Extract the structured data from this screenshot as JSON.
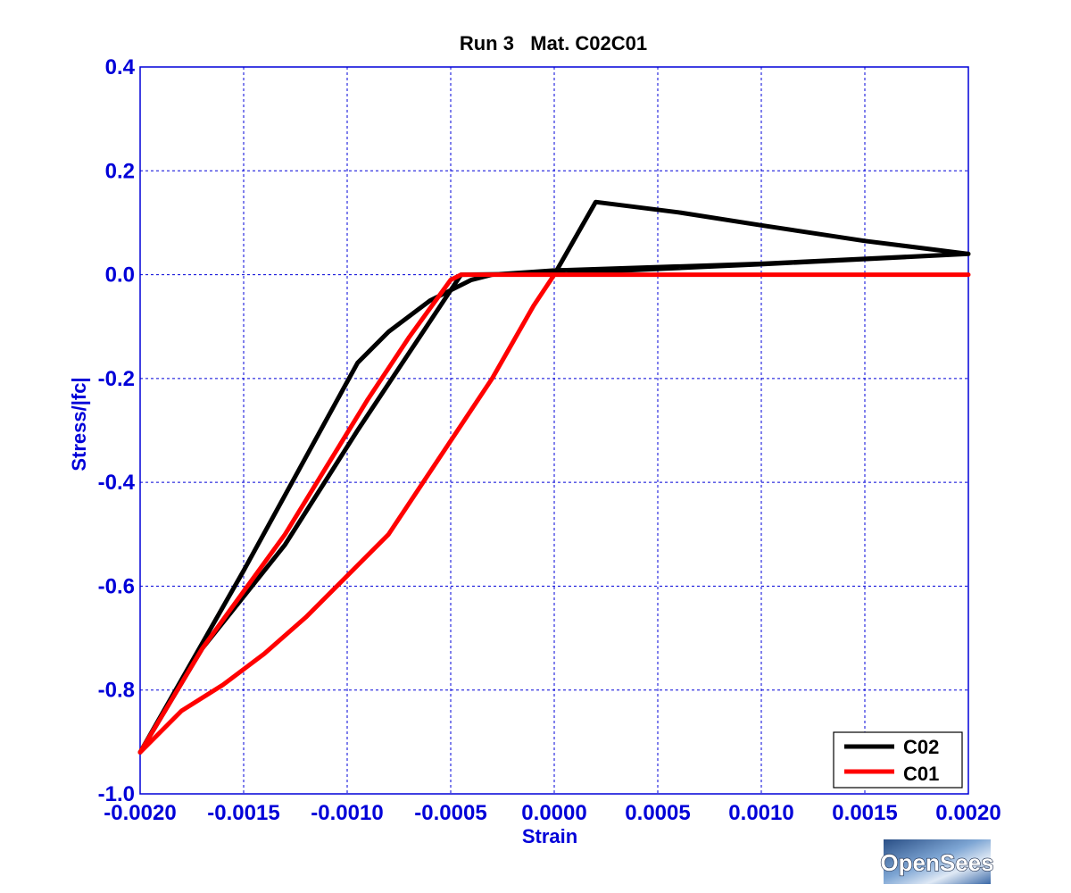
{
  "chart_data": {
    "type": "line",
    "title": "Run 3   Mat. C02C01",
    "xlabel": "Strain",
    "ylabel": "Stress/|fc|",
    "xlim": [
      -0.002,
      0.002
    ],
    "ylim": [
      -1.0,
      0.4
    ],
    "x_ticks": [
      -0.002,
      -0.0015,
      -0.001,
      -0.0005,
      0.0,
      0.0005,
      0.001,
      0.0015,
      0.002
    ],
    "x_tick_labels": [
      "-0.0020",
      "-0.0015",
      "-0.0010",
      "-0.0005",
      "0.0000",
      "0.0005",
      "0.0010",
      "0.0015",
      "0.0020"
    ],
    "y_ticks": [
      0.4,
      0.2,
      0.0,
      -0.2,
      -0.4,
      -0.6,
      -0.8,
      -1.0
    ],
    "y_tick_labels": [
      "0.4",
      "0.2",
      "0.0",
      "-0.2",
      "-0.4",
      "-0.6",
      "-0.8",
      "-1.0"
    ],
    "grid": true,
    "legend_position": "bottom-right",
    "series": [
      {
        "name": "C02",
        "color": "#000000",
        "points": [
          [
            0.0,
            0.0
          ],
          [
            0.0002,
            0.14
          ],
          [
            0.0006,
            0.12
          ],
          [
            0.001,
            0.095
          ],
          [
            0.0015,
            0.065
          ],
          [
            0.002,
            0.04
          ],
          [
            0.001,
            0.021
          ],
          [
            0.0,
            0.008
          ],
          [
            -0.0003,
            0.0
          ],
          [
            -0.0004,
            -0.01
          ],
          [
            -0.0006,
            -0.05
          ],
          [
            -0.0008,
            -0.11
          ],
          [
            -0.00095,
            -0.17
          ],
          [
            -0.0015,
            -0.57
          ],
          [
            -0.002,
            -0.92
          ],
          [
            -0.0017,
            -0.72
          ],
          [
            -0.0013,
            -0.52
          ],
          [
            -0.00095,
            -0.3
          ],
          [
            -0.0007,
            -0.15
          ],
          [
            -0.00045,
            0.0
          ],
          [
            0.0,
            0.002
          ],
          [
            0.001,
            0.02
          ],
          [
            0.002,
            0.04
          ]
        ]
      },
      {
        "name": "C01",
        "color": "#ff0000",
        "points": [
          [
            0.0,
            0.0
          ],
          [
            -0.0001,
            -0.06
          ],
          [
            -0.0002,
            -0.13
          ],
          [
            -0.0003,
            -0.2
          ],
          [
            -0.0004,
            -0.26
          ],
          [
            -0.0005,
            -0.32
          ],
          [
            -0.0006,
            -0.38
          ],
          [
            -0.0007,
            -0.44
          ],
          [
            -0.0008,
            -0.5
          ],
          [
            -0.001,
            -0.58
          ],
          [
            -0.0012,
            -0.66
          ],
          [
            -0.0014,
            -0.73
          ],
          [
            -0.0016,
            -0.79
          ],
          [
            -0.0018,
            -0.84
          ],
          [
            -0.002,
            -0.92
          ],
          [
            -0.0017,
            -0.72
          ],
          [
            -0.0015,
            -0.61
          ],
          [
            -0.0013,
            -0.5
          ],
          [
            -0.0011,
            -0.37
          ],
          [
            -0.0009,
            -0.24
          ],
          [
            -0.0007,
            -0.12
          ],
          [
            -0.0005,
            -0.01
          ],
          [
            -0.00045,
            0.0
          ],
          [
            0.0,
            0.0
          ],
          [
            0.001,
            0.0
          ],
          [
            0.002,
            0.0
          ]
        ]
      }
    ]
  },
  "logo": {
    "text": "OpenSees"
  }
}
